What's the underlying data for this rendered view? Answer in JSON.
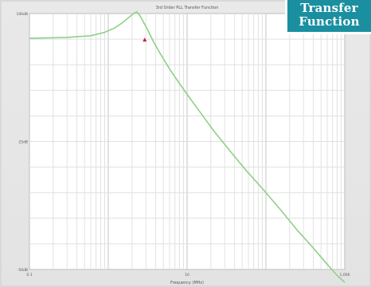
{
  "badge": {
    "line1": "Transfer",
    "line2": "Function"
  },
  "chart_data": {
    "type": "line",
    "title": "3rd Order PLL Transfer Function",
    "xlabel": "Frequency (MHz)",
    "ylabel": "",
    "xscale": "log",
    "xlim": [
      0.1,
      1000
    ],
    "ylim": [
      -50,
      100
    ],
    "x_ticks": [
      {
        "value": 0.1,
        "label": "0.1"
      },
      {
        "value": 10,
        "label": "10"
      },
      {
        "value": 1000,
        "label": "1,000"
      }
    ],
    "y_ticks": [
      {
        "value": 100,
        "label": "100dB"
      },
      {
        "value": 25,
        "label": "25dB"
      },
      {
        "value": -50,
        "label": "-50dB"
      }
    ],
    "grid": true,
    "series": [
      {
        "color": "#8fd088",
        "x": [
          0.1,
          0.3,
          0.6,
          0.9,
          1.2,
          1.5,
          1.8,
          2.1,
          2.3,
          2.5,
          2.8,
          3.2,
          3.7,
          4.5,
          6,
          8,
          11,
          15,
          22,
          35,
          55,
          90,
          150,
          250,
          400,
          600,
          800,
          1000
        ],
        "y": [
          85.5,
          86,
          87,
          89,
          91.5,
          94.5,
          97.5,
          100,
          101,
          99,
          95,
          90,
          84,
          77,
          67.5,
          59,
          50,
          41.5,
          31,
          19.5,
          8.5,
          -2.5,
          -14.5,
          -27,
          -37.5,
          -47,
          -53.5,
          -57.5
        ]
      }
    ],
    "marker": {
      "x": 2.9,
      "y": 84.5,
      "symbol": "triangle",
      "color": "#c0245c"
    }
  }
}
